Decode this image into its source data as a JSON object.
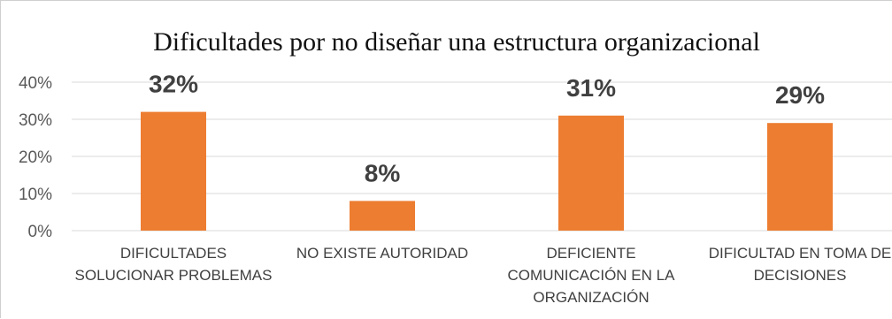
{
  "chart_data": {
    "type": "bar",
    "title": "Dificultades por no diseñar una estructura organizacional",
    "categories": [
      [
        "DIFICULTADES",
        "SOLUCIONAR PROBLEMAS"
      ],
      [
        "NO EXISTE AUTORIDAD"
      ],
      [
        "DEFICIENTE",
        "COMUNICACIÓN EN LA",
        "ORGANIZACIÓN"
      ],
      [
        "DIFICULTAD EN TOMA DE",
        "DECISIONES"
      ]
    ],
    "values": [
      32,
      8,
      31,
      29
    ],
    "data_labels": [
      "32%",
      "8%",
      "31%",
      "29%"
    ],
    "y_ticks": [
      {
        "value": 0,
        "label": "0%"
      },
      {
        "value": 10,
        "label": "10%"
      },
      {
        "value": 20,
        "label": "20%"
      },
      {
        "value": 30,
        "label": "30%"
      },
      {
        "value": 40,
        "label": "40%"
      }
    ],
    "ylim": [
      0,
      40
    ],
    "xlabel": "",
    "ylabel": "",
    "grid": true,
    "legend": "none",
    "bar_color": "#ED7D31",
    "grid_color": "#D9D9D9"
  }
}
